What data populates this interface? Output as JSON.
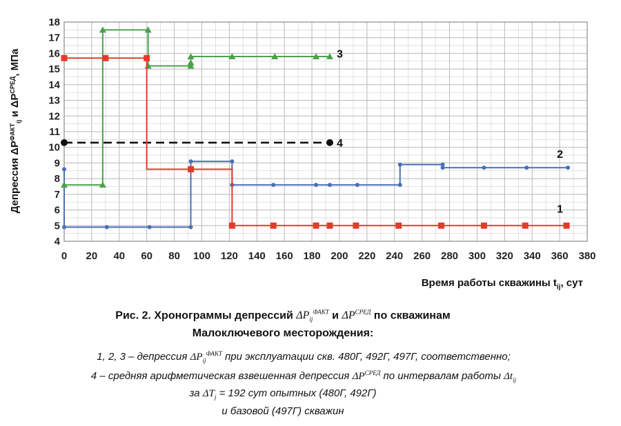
{
  "chart_data": {
    "type": "line",
    "title": "",
    "xlabel_prefix": "Время работы скважины t",
    "xlabel_sub": "ij",
    "xlabel_suffix": ", сут",
    "ylabel": "Депрессия ΔPᶠᴬᴷᵀij и ΔPᶜᴾᴱᴰ, МПа",
    "xlim": [
      0,
      380
    ],
    "ylim": [
      4,
      18
    ],
    "x_ticks": [
      0,
      20,
      40,
      60,
      80,
      100,
      120,
      140,
      160,
      180,
      200,
      220,
      240,
      260,
      280,
      300,
      320,
      340,
      360,
      380
    ],
    "y_ticks": [
      4,
      5,
      6,
      7,
      8,
      9,
      10,
      11,
      12,
      13,
      14,
      15,
      16,
      17,
      18
    ],
    "grid": true,
    "series": [
      {
        "name": "1",
        "color": "#e53a2a",
        "marker": "square",
        "dash": false,
        "x": [
          0,
          30,
          60,
          60,
          92,
          122,
          122,
          152,
          183,
          193,
          212,
          243,
          274,
          305,
          335,
          365
        ],
        "y": [
          15.7,
          15.7,
          15.7,
          8.6,
          8.6,
          8.6,
          5.0,
          5.0,
          5.0,
          5.0,
          5.0,
          5.0,
          5.0,
          5.0,
          5.0,
          5.0
        ],
        "markers_x": [
          0,
          30,
          60,
          92,
          122,
          152,
          183,
          193,
          212,
          243,
          274,
          305,
          335,
          365
        ],
        "markers_y": [
          15.7,
          15.7,
          15.7,
          8.6,
          5.0,
          5.0,
          5.0,
          5.0,
          5.0,
          5.0,
          5.0,
          5.0,
          5.0,
          5.0
        ]
      },
      {
        "name": "2",
        "color": "#4a6fb5",
        "marker": "dot",
        "dash": false,
        "x": [
          0,
          0,
          31,
          62,
          92,
          92,
          92,
          122,
          122,
          152,
          183,
          193,
          213,
          244,
          244,
          275,
          275,
          305,
          336,
          366
        ],
        "y": [
          8.6,
          4.9,
          4.9,
          4.9,
          4.9,
          8.6,
          9.1,
          9.1,
          7.6,
          7.6,
          7.6,
          7.6,
          7.6,
          7.6,
          8.9,
          8.9,
          8.7,
          8.7,
          8.7,
          8.7
        ],
        "markers_x": [
          0,
          0,
          31,
          62,
          92,
          92,
          92,
          122,
          122,
          152,
          183,
          193,
          213,
          244,
          244,
          275,
          275,
          305,
          336,
          366
        ],
        "markers_y": [
          8.6,
          4.9,
          4.9,
          4.9,
          4.9,
          8.6,
          9.1,
          9.1,
          7.6,
          7.6,
          7.6,
          7.6,
          7.6,
          7.6,
          8.9,
          8.9,
          8.7,
          8.7,
          8.7,
          8.7
        ]
      },
      {
        "name": "3",
        "color": "#4aa24a",
        "marker": "triangle",
        "dash": false,
        "x": [
          0,
          28,
          28,
          61,
          61,
          92,
          92,
          92,
          122,
          153,
          183,
          193
        ],
        "y": [
          7.6,
          7.6,
          17.5,
          17.5,
          15.2,
          15.2,
          15.4,
          15.8,
          15.8,
          15.8,
          15.8,
          15.8
        ],
        "markers_x": [
          0,
          28,
          28,
          61,
          61,
          92,
          92,
          92,
          122,
          153,
          183,
          193
        ],
        "markers_y": [
          7.6,
          7.6,
          17.5,
          17.5,
          15.2,
          15.2,
          15.4,
          15.8,
          15.8,
          15.8,
          15.8,
          15.8
        ]
      },
      {
        "name": "4",
        "color": "#111111",
        "marker": "circle-end",
        "dash": true,
        "x": [
          0,
          193
        ],
        "y": [
          10.3,
          10.3
        ],
        "markers_x": [
          0,
          193
        ],
        "markers_y": [
          10.3,
          10.3
        ]
      }
    ],
    "series_labels": [
      {
        "text": "3",
        "x": 198,
        "y": 16.0
      },
      {
        "text": "4",
        "x": 198,
        "y": 10.3
      },
      {
        "text": "2",
        "x": 358,
        "y": 9.6
      },
      {
        "text": "1",
        "x": 358,
        "y": 6.1
      }
    ]
  },
  "caption": {
    "line1_prefix": "Рис. 2. Хронограммы депрессий ",
    "line1_p1": "ΔP",
    "line1_p1_sub": "ij",
    "line1_p1_sup": "ФАКТ",
    "line1_mid": " и ",
    "line1_p2": "ΔP",
    "line1_p2_sup": "СРЕД",
    "line1_suffix": "  по скважинам",
    "line2": "Малоключевого месторождения:",
    "line3_prefix": "1, 2, 3 – депрессия ",
    "line3_p": "ΔP",
    "line3_p_sub": "ij",
    "line3_p_sup": "ФАКТ",
    "line3_suffix": "  при эксплуатации скв. 480Г, 492Г, 497Г, соответственно;",
    "line4_prefix": "4 – средняя арифметическая взвешенная депрессия  ",
    "line4_p": "ΔP",
    "line4_p_sup": "СРЕД",
    "line4_mid": " по интервалам работы ",
    "line4_t": "Δt",
    "line4_t_sub": "ij",
    "line5_prefix": "за  ",
    "line5_T": "ΔT",
    "line5_T_sub": "j",
    "line5_suffix": " = 192 сут опытных (480Г, 492Г)",
    "line6": "и базовой (497Г) скважин"
  }
}
